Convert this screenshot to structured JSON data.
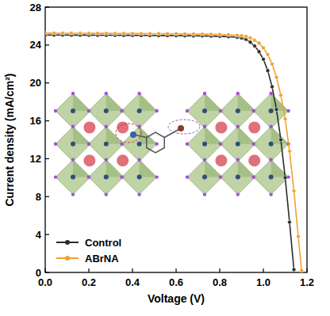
{
  "chart_data": {
    "type": "line",
    "x_label": "Voltage (V)",
    "y_label": "Current density (mA/cm²)",
    "xlim": [
      0,
      1.2
    ],
    "ylim": [
      0,
      28
    ],
    "xticks": [
      {
        "value": 0,
        "label": "0.0"
      },
      {
        "value": 0.2,
        "label": "0.2"
      },
      {
        "value": 0.4,
        "label": "0.4"
      },
      {
        "value": 0.6,
        "label": "0.6"
      },
      {
        "value": 0.8,
        "label": "0.8"
      },
      {
        "value": 1,
        "label": "1.0"
      },
      {
        "value": 1.2,
        "label": "1.2"
      }
    ],
    "yticks": [
      0,
      4,
      8,
      12,
      16,
      20,
      24,
      28
    ],
    "legend": "lower left",
    "marker": "circle",
    "series": [
      {
        "name": "Control",
        "color": "#2b2b2b",
        "x": [
          0,
          0.04,
          0.08,
          0.12,
          0.16,
          0.2,
          0.24,
          0.28,
          0.32,
          0.36,
          0.4,
          0.44,
          0.48,
          0.52,
          0.56,
          0.6,
          0.64,
          0.68,
          0.72,
          0.76,
          0.8,
          0.84,
          0.88,
          0.9,
          0.92,
          0.94,
          0.96,
          0.98,
          1.0,
          1.02,
          1.04,
          1.06,
          1.08,
          1.1,
          1.12,
          1.14
        ],
        "values": [
          25.05,
          25.05,
          25.05,
          25.04,
          25.04,
          25.04,
          25.03,
          25.03,
          25.03,
          25.02,
          25.02,
          25.01,
          25.01,
          25.0,
          25.0,
          24.99,
          24.98,
          24.97,
          24.96,
          24.94,
          24.92,
          24.88,
          24.82,
          24.75,
          24.6,
          24.3,
          23.9,
          23.3,
          22.5,
          21.3,
          19.6,
          17.2,
          14.0,
          10.0,
          5.3,
          0.3
        ]
      },
      {
        "name": "ABrNA",
        "color": "#f0a030",
        "x": [
          0,
          0.04,
          0.08,
          0.12,
          0.16,
          0.2,
          0.24,
          0.28,
          0.32,
          0.36,
          0.4,
          0.44,
          0.48,
          0.52,
          0.56,
          0.6,
          0.64,
          0.68,
          0.72,
          0.76,
          0.8,
          0.84,
          0.88,
          0.9,
          0.92,
          0.94,
          0.96,
          0.98,
          1.0,
          1.02,
          1.04,
          1.06,
          1.08,
          1.1,
          1.12,
          1.14,
          1.16,
          1.175
        ],
        "values": [
          25.25,
          25.25,
          25.24,
          25.24,
          25.24,
          25.23,
          25.23,
          25.23,
          25.22,
          25.22,
          25.21,
          25.21,
          25.2,
          25.2,
          25.19,
          25.18,
          25.17,
          25.16,
          25.15,
          25.13,
          25.11,
          25.08,
          25.02,
          24.98,
          24.9,
          24.75,
          24.5,
          24.2,
          23.7,
          23.0,
          22.0,
          20.6,
          18.7,
          16.2,
          12.8,
          8.6,
          3.8,
          0.2
        ]
      }
    ]
  }
}
